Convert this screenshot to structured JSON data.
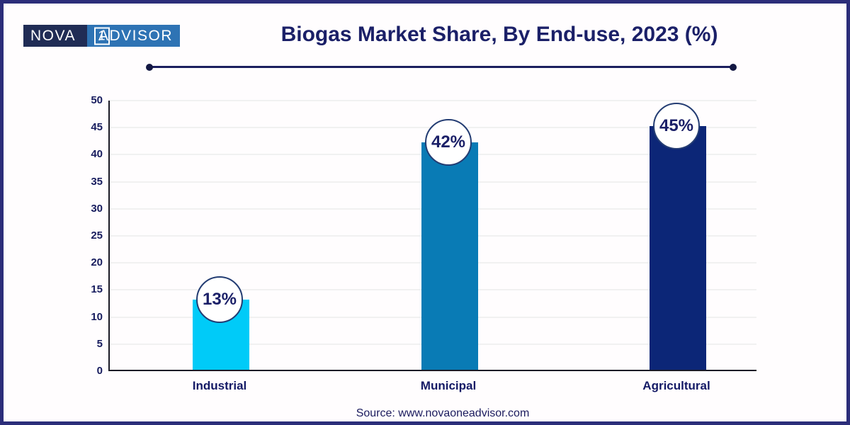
{
  "frame": {
    "border_color": "#2c2e7a",
    "background": "#fffdfe"
  },
  "logo": {
    "part_navy": "NOVA",
    "part_one": "1",
    "part_blue": "ADVISOR",
    "navy_bg": "#202c55",
    "blue_bg": "#2e73b4"
  },
  "header": {
    "title": "Biogas Market Share, By End-use, 2023 (%)"
  },
  "chart_data": {
    "type": "bar",
    "title": "Biogas Market Share, By End-use, 2023 (%)",
    "categories": [
      "Industrial",
      "Municipal",
      "Agricultural"
    ],
    "values": [
      13,
      42,
      45
    ],
    "data_labels": [
      "13%",
      "42%",
      "45%"
    ],
    "bar_colors": [
      "#00cbf8",
      "#097bb5",
      "#0c2677"
    ],
    "xlabel": "",
    "ylabel": "",
    "ylim": [
      0,
      50
    ],
    "yticks": [
      0,
      5,
      10,
      15,
      20,
      25,
      30,
      35,
      40,
      45,
      50
    ],
    "grid": "horizontal",
    "legend": "none"
  },
  "footer": {
    "source": "Source: www.novaoneadvisor.com"
  }
}
